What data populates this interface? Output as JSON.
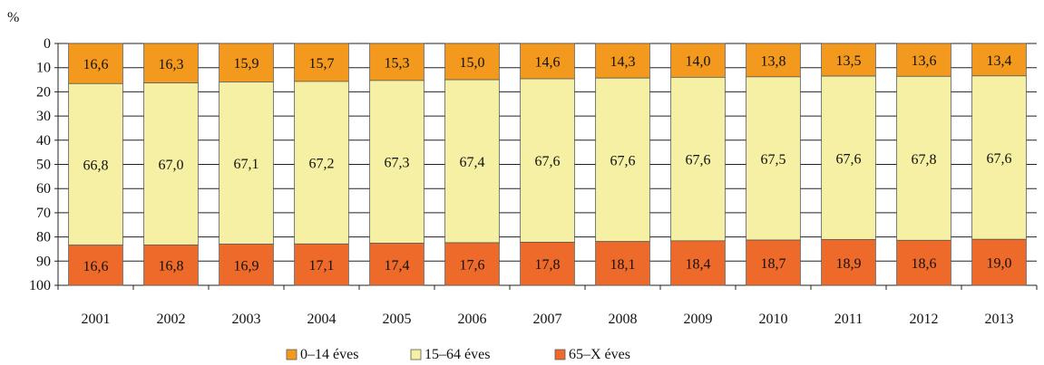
{
  "chart_data": {
    "type": "bar",
    "stacked": true,
    "orientation": "vertical",
    "y_axis_inverted": true,
    "ylabel": "%",
    "ylim": [
      0,
      100
    ],
    "yticks": [
      "0",
      "10",
      "20",
      "30",
      "40",
      "50",
      "60",
      "70",
      "80",
      "90",
      "100"
    ],
    "categories": [
      "2001",
      "2002",
      "2003",
      "2004",
      "2005",
      "2006",
      "2007",
      "2008",
      "2009",
      "2010",
      "2011",
      "2012",
      "2013"
    ],
    "grid": "horizontal",
    "legend_position": "bottom",
    "series": [
      {
        "name": "0–14 éves",
        "color": "#F39A1E",
        "values": [
          16.6,
          16.3,
          15.9,
          15.7,
          15.3,
          15.0,
          14.6,
          14.3,
          14.0,
          13.8,
          13.5,
          13.6,
          13.4
        ],
        "labels": [
          "16,6",
          "16,3",
          "15,9",
          "15,7",
          "15,3",
          "15,0",
          "14,6",
          "14,3",
          "14,0",
          "13,8",
          "13,5",
          "13,6",
          "13,4"
        ]
      },
      {
        "name": "15–64 éves",
        "color": "#F5F0A3",
        "values": [
          66.8,
          67.0,
          67.1,
          67.2,
          67.3,
          67.4,
          67.6,
          67.6,
          67.6,
          67.5,
          67.6,
          67.8,
          67.6
        ],
        "labels": [
          "66,8",
          "67,0",
          "67,1",
          "67,2",
          "67,3",
          "67,4",
          "67,6",
          "67,6",
          "67,6",
          "67,5",
          "67,6",
          "67,8",
          "67,6"
        ]
      },
      {
        "name": "65–X éves",
        "color": "#EE6A2B",
        "values": [
          16.6,
          16.8,
          16.9,
          17.1,
          17.4,
          17.6,
          17.8,
          18.1,
          18.4,
          18.7,
          18.9,
          18.6,
          19.0
        ],
        "labels": [
          "16,6",
          "16,8",
          "16,9",
          "17,1",
          "17,4",
          "17,6",
          "17,8",
          "18,1",
          "18,4",
          "18,7",
          "18,9",
          "18,6",
          "19,0"
        ]
      }
    ]
  }
}
